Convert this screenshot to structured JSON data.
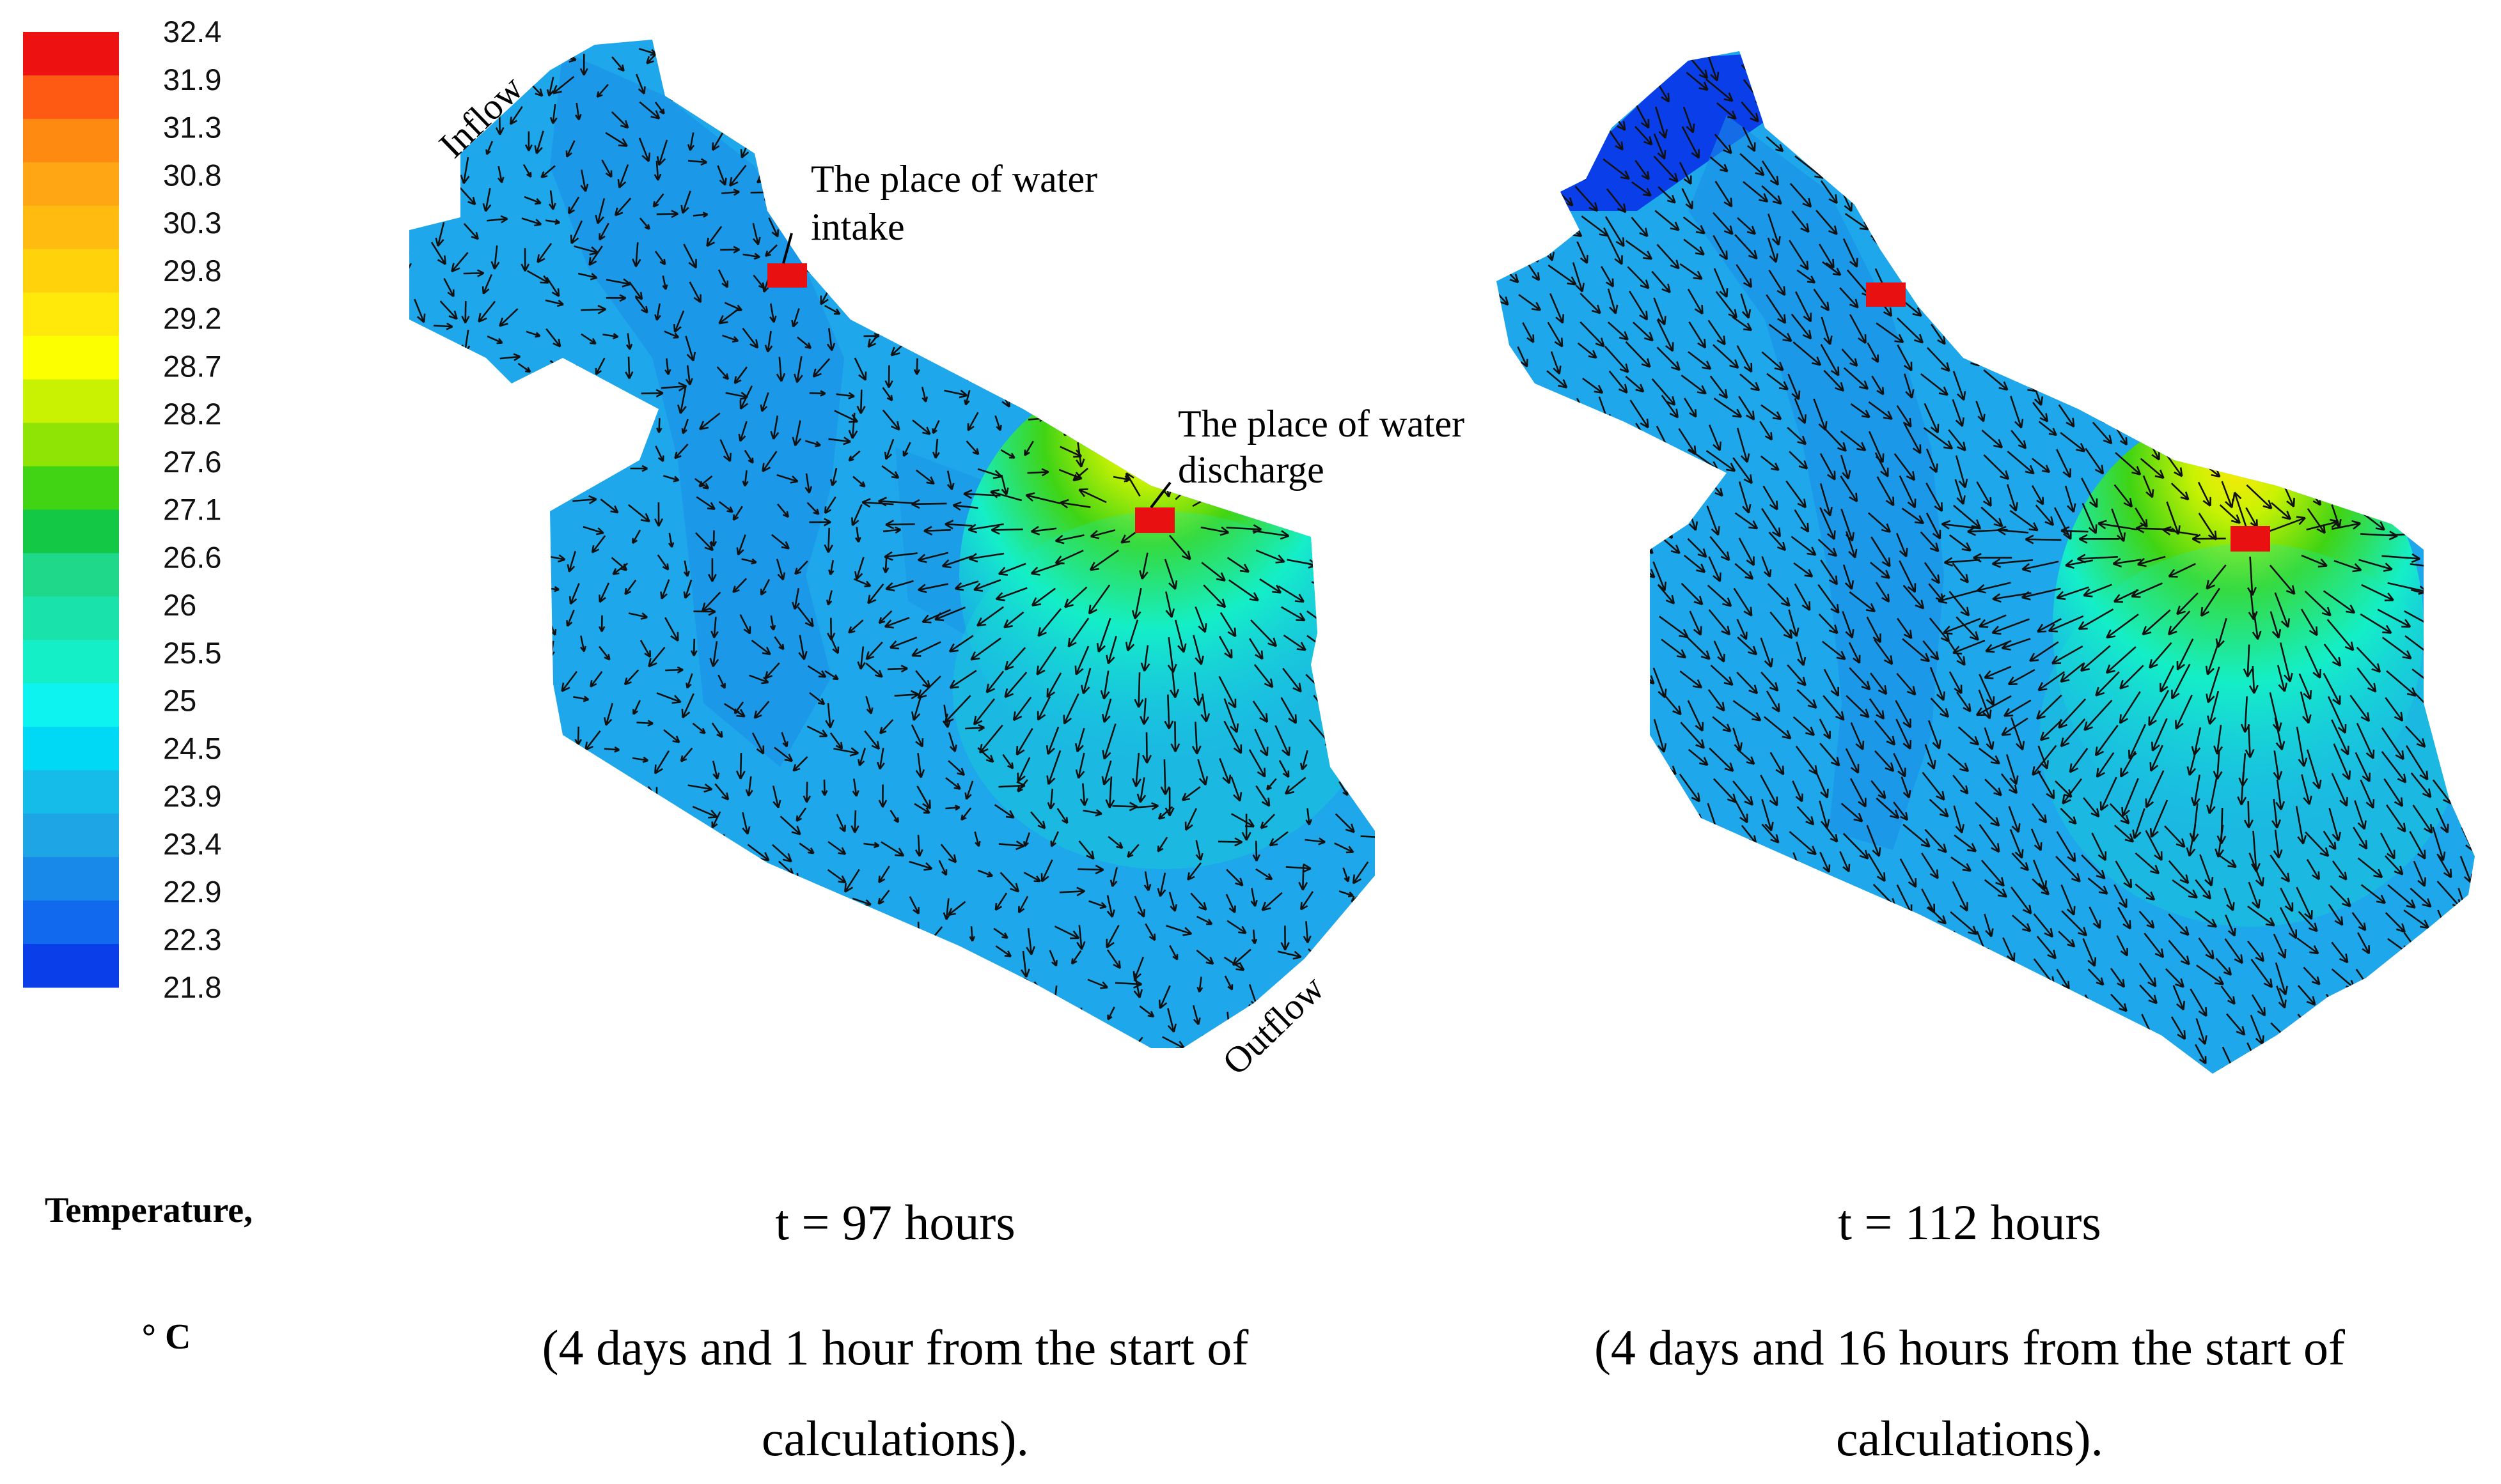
{
  "legend": {
    "title_line1": "Temperature,",
    "title_line2": "° C",
    "colors": [
      "#ee1111",
      "#ff5a14",
      "#ff8a12",
      "#ffa614",
      "#ffbb10",
      "#ffd20c",
      "#ffe90a",
      "#fbff00",
      "#c9f203",
      "#8fe305",
      "#40d414",
      "#12c845",
      "#1fd88a",
      "#19e3aa",
      "#15efc8",
      "#0df3f0",
      "#00d9f6",
      "#16bce9",
      "#1da5e6",
      "#1889e9",
      "#1169ed",
      "#0a3ee8"
    ],
    "values": [
      "32.4",
      "31.9",
      "31.3",
      "30.8",
      "30.3",
      "29.8",
      "29.2",
      "28.7",
      "28.2",
      "27.6",
      "27.1",
      "26.6",
      "26",
      "25.5",
      "25",
      "24.5",
      "23.9",
      "23.4",
      "22.9",
      "22.3",
      "21.8"
    ]
  },
  "map_left": {
    "label_inflow": "Inflow",
    "label_outflow": "Outflow",
    "label_intake_line1": "The place of water",
    "label_intake_line2": "intake",
    "label_discharge_line1": "The place of water",
    "label_discharge_line2": "discharge"
  },
  "captions": [
    {
      "time": "t = 97 hours",
      "line1": "(4 days and 1 hour from the start of",
      "line2": "calculations)."
    },
    {
      "time": "t = 112 hours",
      "line1": "(4 days and 16 hours from the start of",
      "line2": "calculations)."
    }
  ]
}
